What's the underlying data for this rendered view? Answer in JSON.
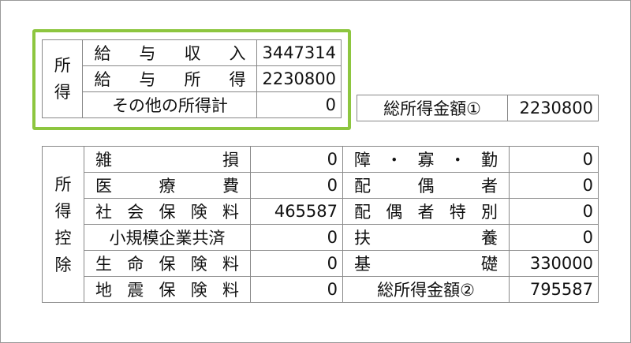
{
  "income": {
    "label": "所得",
    "rows": [
      {
        "name": "給与収入",
        "value": "3447314"
      },
      {
        "name": "給与所得",
        "value": "2230800"
      },
      {
        "name": "その他の所得計",
        "value": "0"
      }
    ]
  },
  "total1": {
    "name": "総所得金額①",
    "value": "2230800"
  },
  "deduction": {
    "label": "所得控除",
    "rows": [
      {
        "left_name": "雑損",
        "left_value": "0",
        "right_name": "障・寡・勤",
        "right_value": "0"
      },
      {
        "left_name": "医療費",
        "left_value": "0",
        "right_name": "配偶者",
        "right_value": "0"
      },
      {
        "left_name": "社会保険料",
        "left_value": "465587",
        "right_name": "配偶者特別",
        "right_value": "0"
      },
      {
        "left_name": "小規模企業共済",
        "left_value": "0",
        "right_name": "扶養",
        "right_value": "0"
      },
      {
        "left_name": "生命保険料",
        "left_value": "0",
        "right_name": "基礎",
        "right_value": "330000"
      },
      {
        "left_name": "地震保険料",
        "left_value": "0",
        "right_name": "総所得金額②",
        "right_value": "795587"
      }
    ]
  },
  "highlight_color": "#8dc63f"
}
